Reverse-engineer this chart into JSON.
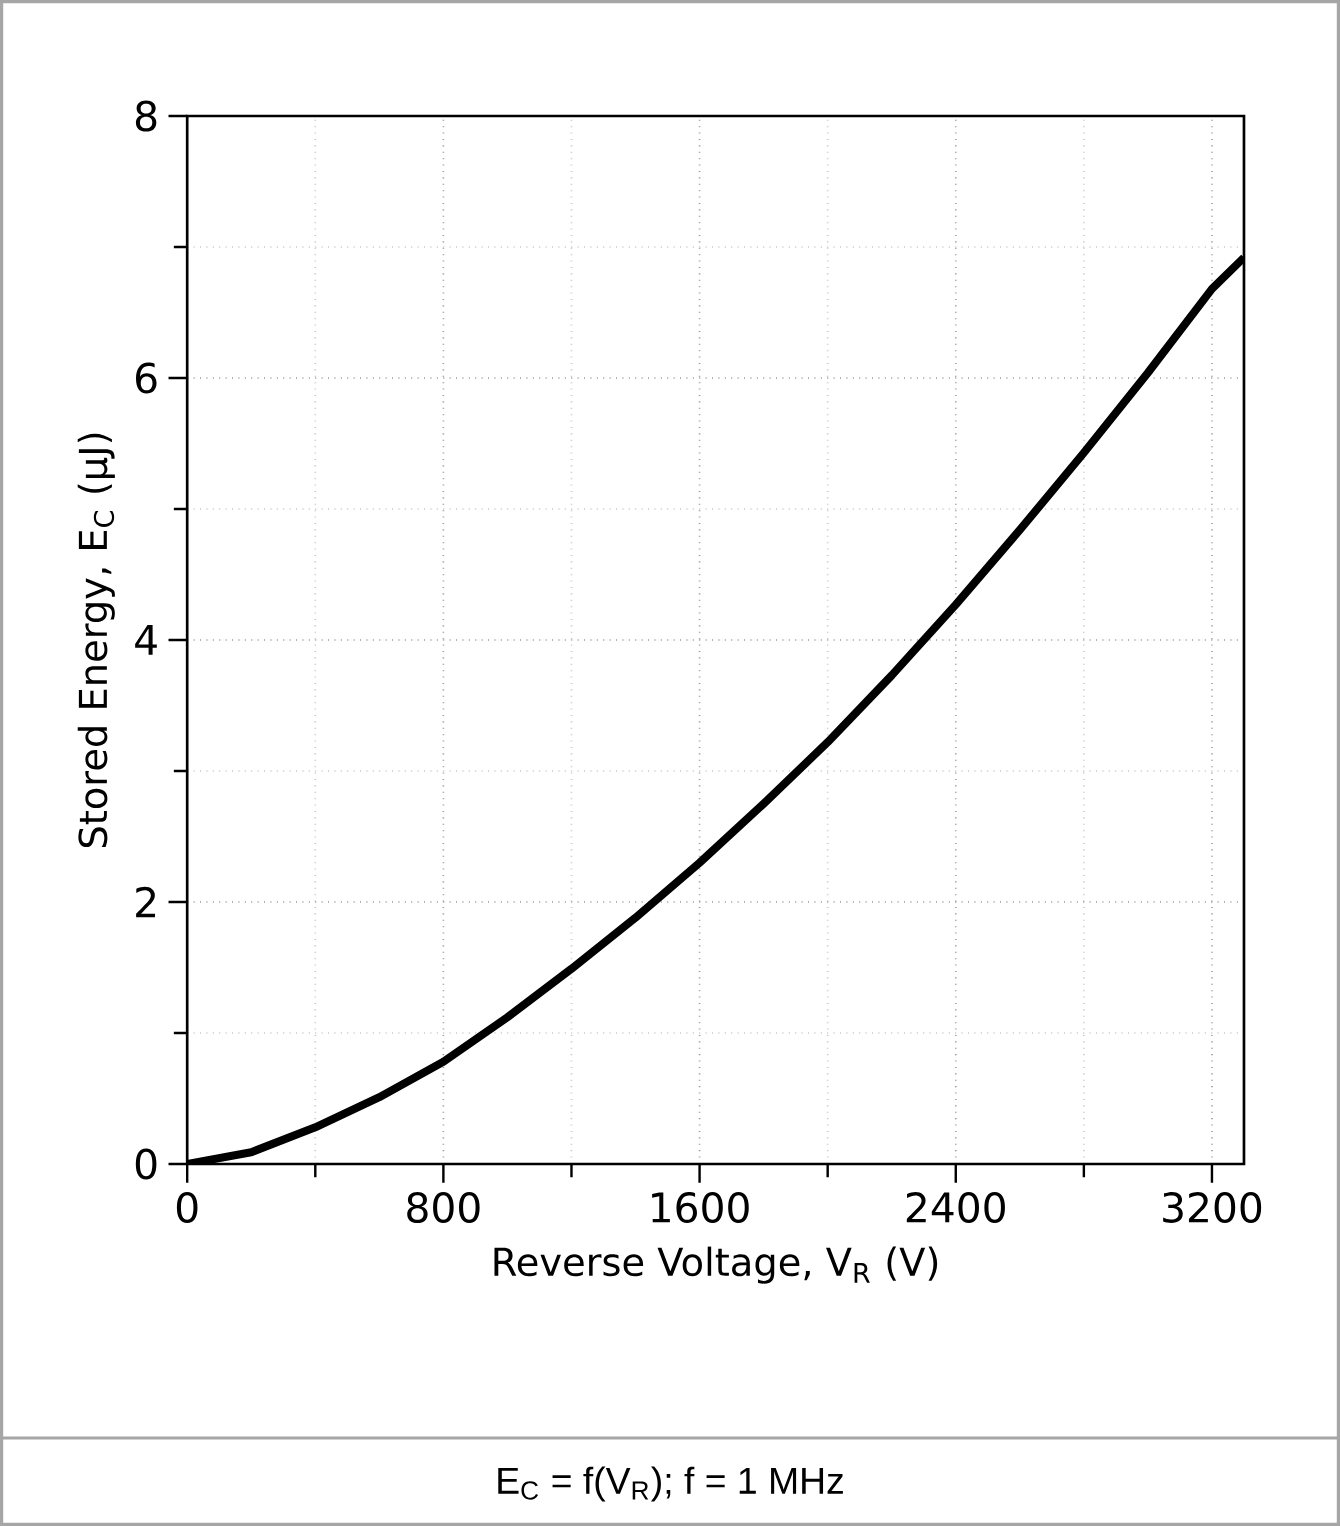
{
  "chart_data": {
    "type": "line",
    "xlabel": "Reverse Voltage, V$_{R}$ (V)",
    "ylabel": "Stored Energy, E$_{C}$ (μJ)",
    "annotations": [
      "E$_{C}$ = f(V$_{R}$); f = 1 MHz"
    ],
    "x": [
      0,
      200,
      400,
      600,
      800,
      1000,
      1200,
      1400,
      1600,
      1800,
      2000,
      2200,
      2400,
      2600,
      2800,
      3000,
      3200,
      3300
    ],
    "series": [
      {
        "color": "#000000",
        "values": [
          0,
          0.09,
          0.28,
          0.51,
          0.78,
          1.12,
          1.49,
          1.88,
          2.3,
          2.75,
          3.22,
          3.73,
          4.27,
          4.84,
          5.43,
          6.04,
          6.68,
          6.92
        ]
      }
    ],
    "xlim": [
      0,
      3300
    ],
    "ylim": [
      0,
      8
    ],
    "xticks": [
      0,
      {
        "value": 400,
        "label": null
      },
      800,
      {
        "value": 1200,
        "label": null
      },
      1600,
      {
        "value": 2000,
        "label": null
      },
      2400,
      {
        "value": 2800,
        "label": null
      },
      3200
    ],
    "yticks": [
      0,
      {
        "value": 1,
        "label": null
      },
      2,
      {
        "value": 3,
        "label": null
      },
      4,
      {
        "value": 5,
        "label": null
      },
      6,
      {
        "value": 7,
        "label": null
      },
      8
    ],
    "grid": true
  }
}
